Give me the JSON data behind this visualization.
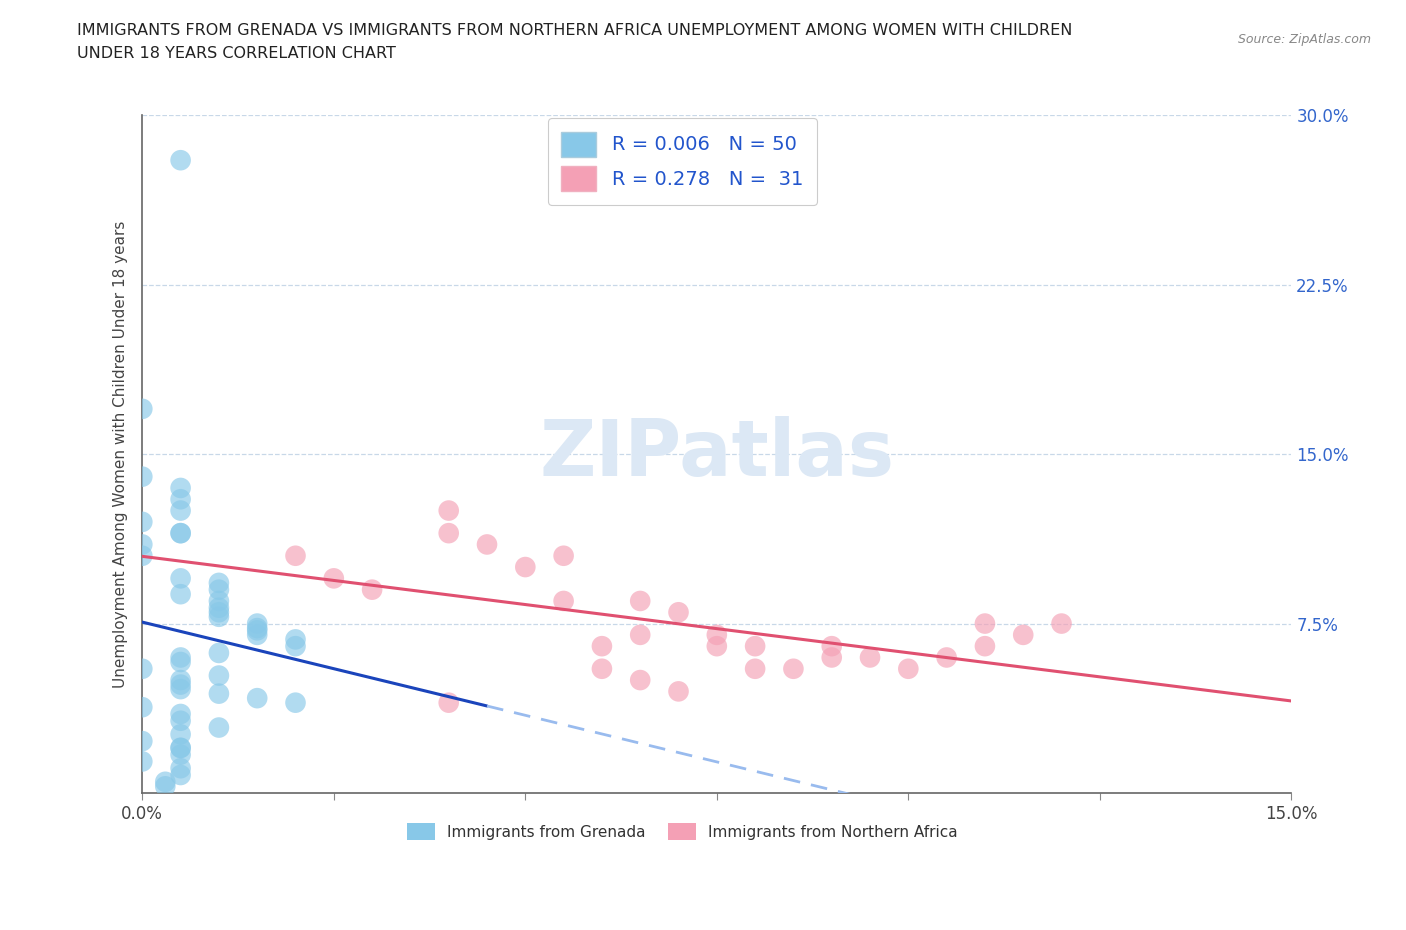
{
  "title_line1": "IMMIGRANTS FROM GRENADA VS IMMIGRANTS FROM NORTHERN AFRICA UNEMPLOYMENT AMONG WOMEN WITH CHILDREN",
  "title_line2": "UNDER 18 YEARS CORRELATION CHART",
  "source": "Source: ZipAtlas.com",
  "ylabel": "Unemployment Among Women with Children Under 18 years",
  "xlim": [
    0.0,
    0.15
  ],
  "ylim": [
    0.0,
    0.3
  ],
  "grenada_R": "0.006",
  "grenada_N": "50",
  "n_africa_R": "0.278",
  "n_africa_N": "31",
  "grenada_color": "#88c8e8",
  "n_africa_color": "#f4a0b5",
  "trend_grenada_color": "#1a44bb",
  "trend_grenada_dash_color": "#99bbee",
  "trend_n_africa_color": "#e05070",
  "watermark_color": "#dce8f5",
  "background_color": "#ffffff",
  "legend_text_color": "#2255cc",
  "tick_color": "#3366cc",
  "grenada_x": [
    0.005,
    0.0,
    0.0,
    0.005,
    0.005,
    0.005,
    0.0,
    0.005,
    0.005,
    0.0,
    0.0,
    0.005,
    0.01,
    0.01,
    0.005,
    0.01,
    0.01,
    0.01,
    0.01,
    0.015,
    0.015,
    0.015,
    0.015,
    0.02,
    0.02,
    0.01,
    0.005,
    0.005,
    0.0,
    0.01,
    0.005,
    0.005,
    0.005,
    0.01,
    0.015,
    0.02,
    0.0,
    0.005,
    0.005,
    0.01,
    0.005,
    0.0,
    0.005,
    0.005,
    0.0,
    0.005,
    0.005,
    0.003,
    0.003,
    0.005
  ],
  "grenada_y": [
    0.28,
    0.17,
    0.14,
    0.135,
    0.13,
    0.125,
    0.12,
    0.115,
    0.115,
    0.11,
    0.105,
    0.095,
    0.093,
    0.09,
    0.088,
    0.085,
    0.082,
    0.08,
    0.078,
    0.075,
    0.073,
    0.072,
    0.07,
    0.068,
    0.065,
    0.062,
    0.06,
    0.058,
    0.055,
    0.052,
    0.05,
    0.048,
    0.046,
    0.044,
    0.042,
    0.04,
    0.038,
    0.035,
    0.032,
    0.029,
    0.026,
    0.023,
    0.02,
    0.017,
    0.014,
    0.011,
    0.008,
    0.005,
    0.003,
    0.02
  ],
  "n_africa_x": [
    0.02,
    0.025,
    0.03,
    0.04,
    0.04,
    0.045,
    0.05,
    0.055,
    0.055,
    0.06,
    0.065,
    0.065,
    0.07,
    0.075,
    0.075,
    0.08,
    0.085,
    0.09,
    0.09,
    0.095,
    0.1,
    0.105,
    0.11,
    0.115,
    0.12,
    0.04,
    0.06,
    0.065,
    0.07,
    0.11,
    0.08
  ],
  "n_africa_y": [
    0.105,
    0.095,
    0.09,
    0.125,
    0.115,
    0.11,
    0.1,
    0.085,
    0.105,
    0.065,
    0.085,
    0.07,
    0.08,
    0.065,
    0.07,
    0.065,
    0.055,
    0.065,
    0.06,
    0.06,
    0.055,
    0.06,
    0.065,
    0.07,
    0.075,
    0.04,
    0.055,
    0.05,
    0.045,
    0.075,
    0.055
  ]
}
